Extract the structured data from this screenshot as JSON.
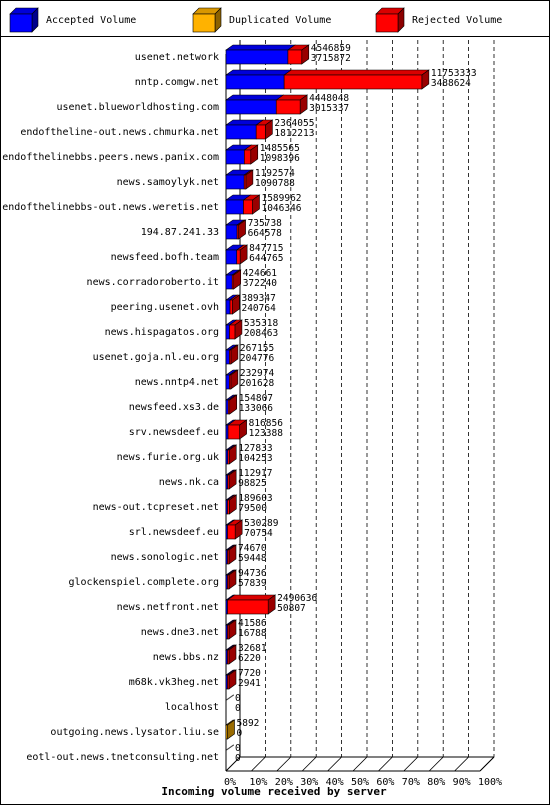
{
  "chart_data": {
    "type": "bar",
    "orientation": "horizontal",
    "stacked": true,
    "style": "3d",
    "xlabel": "Incoming volume received by server",
    "xlim": [
      0,
      100
    ],
    "x_tick_labels": [
      "0%",
      "10%",
      "20%",
      "30%",
      "40%",
      "50%",
      "60%",
      "70%",
      "80%",
      "90%",
      "100%"
    ],
    "grid": true,
    "legend_position": "top",
    "max_total": 15241957,
    "series": [
      {
        "name": "Accepted Volume",
        "color": "#0000ff"
      },
      {
        "name": "Duplicated Volume",
        "color": "#ffb200"
      },
      {
        "name": "Rejected Volume",
        "color": "#ff0000"
      }
    ],
    "rows": [
      {
        "server": "usenet.network",
        "accepted": 3715872,
        "duplicated": 0,
        "rejected": 830987,
        "label_top": "4546859",
        "label_bottom": "3715872"
      },
      {
        "server": "nntp.comgw.net",
        "accepted": 3488624,
        "duplicated": 0,
        "rejected": 8264709,
        "label_top": "11753333",
        "label_bottom": "3488624"
      },
      {
        "server": "usenet.blueworldhosting.com",
        "accepted": 3015337,
        "duplicated": 0,
        "rejected": 1432711,
        "label_top": "4448048",
        "label_bottom": "3015337"
      },
      {
        "server": "endoftheline-out.news.chmurka.net",
        "accepted": 1812213,
        "duplicated": 0,
        "rejected": 551842,
        "label_top": "2364055",
        "label_bottom": "1812213"
      },
      {
        "server": "endofthelinebbs.peers.news.panix.com",
        "accepted": 1098396,
        "duplicated": 0,
        "rejected": 387169,
        "label_top": "1485565",
        "label_bottom": "1098396"
      },
      {
        "server": "news.samoylyk.net",
        "accepted": 1090788,
        "duplicated": 0,
        "rejected": 101786,
        "label_top": "1192574",
        "label_bottom": "1090788"
      },
      {
        "server": "endofthelinebbs-out.news.weretis.net",
        "accepted": 1046346,
        "duplicated": 0,
        "rejected": 543616,
        "label_top": "1589962",
        "label_bottom": "1046346"
      },
      {
        "server": "194.87.241.33",
        "accepted": 664578,
        "duplicated": 0,
        "rejected": 71160,
        "label_top": "735738",
        "label_bottom": "664578"
      },
      {
        "server": "newsfeed.bofh.team",
        "accepted": 644765,
        "duplicated": 0,
        "rejected": 202950,
        "label_top": "847715",
        "label_bottom": "644765"
      },
      {
        "server": "news.corradoroberto.it",
        "accepted": 372240,
        "duplicated": 0,
        "rejected": 52421,
        "label_top": "424661",
        "label_bottom": "372240"
      },
      {
        "server": "peering.usenet.ovh",
        "accepted": 240764,
        "duplicated": 0,
        "rejected": 148583,
        "label_top": "389347",
        "label_bottom": "240764"
      },
      {
        "server": "news.hispagatos.org",
        "accepted": 208463,
        "duplicated": 0,
        "rejected": 326855,
        "label_top": "535318",
        "label_bottom": "208463"
      },
      {
        "server": "usenet.goja.nl.eu.org",
        "accepted": 204776,
        "duplicated": 0,
        "rejected": 62379,
        "label_top": "267155",
        "label_bottom": "204776"
      },
      {
        "server": "news.nntp4.net",
        "accepted": 201628,
        "duplicated": 0,
        "rejected": 31346,
        "label_top": "232974",
        "label_bottom": "201628"
      },
      {
        "server": "newsfeed.xs3.de",
        "accepted": 133066,
        "duplicated": 0,
        "rejected": 21741,
        "label_top": "154807",
        "label_bottom": "133066"
      },
      {
        "server": "srv.newsdeef.eu",
        "accepted": 123388,
        "duplicated": 0,
        "rejected": 693468,
        "label_top": "816856",
        "label_bottom": "123388"
      },
      {
        "server": "news.furie.org.uk",
        "accepted": 104253,
        "duplicated": 0,
        "rejected": 23580,
        "label_top": "127833",
        "label_bottom": "104253"
      },
      {
        "server": "news.nk.ca",
        "accepted": 98825,
        "duplicated": 0,
        "rejected": 14092,
        "label_top": "112917",
        "label_bottom": "98825"
      },
      {
        "server": "news-out.tcpreset.net",
        "accepted": 79500,
        "duplicated": 0,
        "rejected": 110103,
        "label_top": "189603",
        "label_bottom": "79500"
      },
      {
        "server": "srl.newsdeef.eu",
        "accepted": 70754,
        "duplicated": 0,
        "rejected": 459535,
        "label_top": "530289",
        "label_bottom": "70754"
      },
      {
        "server": "news.sonologic.net",
        "accepted": 59448,
        "duplicated": 0,
        "rejected": 15222,
        "label_top": "74670",
        "label_bottom": "59448"
      },
      {
        "server": "glockenspiel.complete.org",
        "accepted": 57839,
        "duplicated": 0,
        "rejected": 36897,
        "label_top": "94736",
        "label_bottom": "57839"
      },
      {
        "server": "news.netfront.net",
        "accepted": 50807,
        "duplicated": 0,
        "rejected": 2439829,
        "label_top": "2490636",
        "label_bottom": "50807"
      },
      {
        "server": "news.dne3.net",
        "accepted": 16788,
        "duplicated": 0,
        "rejected": 24798,
        "label_top": "41586",
        "label_bottom": "16788"
      },
      {
        "server": "news.bbs.nz",
        "accepted": 6220,
        "duplicated": 0,
        "rejected": 26461,
        "label_top": "32681",
        "label_bottom": "6220"
      },
      {
        "server": "m68k.vk3heg.net",
        "accepted": 2941,
        "duplicated": 0,
        "rejected": 4779,
        "label_top": "7720",
        "label_bottom": "2941"
      },
      {
        "server": "localhost",
        "accepted": 0,
        "duplicated": 0,
        "rejected": 0,
        "label_top": "0",
        "label_bottom": "0"
      },
      {
        "server": "outgoing.news.lysator.liu.se",
        "accepted": 0,
        "duplicated": 5892,
        "rejected": 0,
        "label_top": "5892",
        "label_bottom": "0"
      },
      {
        "server": "eotl-out.news.tnetconsulting.net",
        "accepted": 0,
        "duplicated": 0,
        "rejected": 0,
        "label_top": "0",
        "label_bottom": "0"
      }
    ]
  }
}
